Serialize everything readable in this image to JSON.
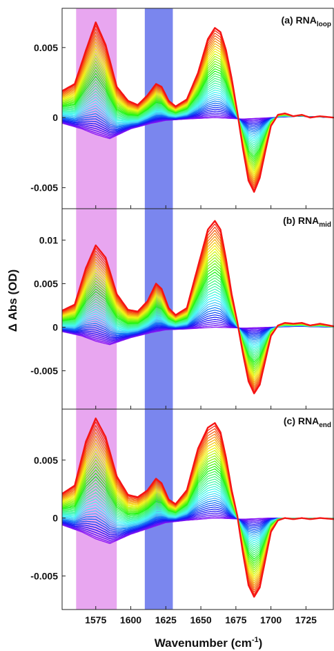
{
  "figure": {
    "ylabel": "Δ Abs (OD)",
    "xlabel_main": "Wavenumber (cm",
    "xlabel_sup": "-1",
    "xlabel_close": ")",
    "x_ticks": [
      "1575",
      "1600",
      "1625",
      "1650",
      "1675",
      "1700",
      "1725"
    ],
    "x_tick_values": [
      1575,
      1600,
      1625,
      1650,
      1675,
      1700,
      1725
    ],
    "xlim": [
      1551,
      1745
    ],
    "highlight_bands": [
      {
        "from": 1561,
        "to": 1590,
        "color": "#e8a6f0"
      },
      {
        "from": 1610,
        "to": 1630,
        "color": "#7a86ee"
      }
    ],
    "series_colors_order": "violet (earliest) to red (latest)"
  },
  "chart_data": [
    {
      "type": "line",
      "title_main": "(a) RNA",
      "title_sub": "loop",
      "ylim": [
        -0.0065,
        0.0078
      ],
      "y_ticks": [
        "0.005",
        "0",
        "-0.005"
      ],
      "y_tick_values": [
        0.005,
        0,
        -0.005
      ],
      "grid": false,
      "n_series": 40,
      "final_spectrum": {
        "x": [
          1551,
          1560,
          1568,
          1575,
          1582,
          1590,
          1598,
          1605,
          1612,
          1618,
          1622,
          1627,
          1632,
          1640,
          1648,
          1655,
          1660,
          1664,
          1668,
          1672,
          1676,
          1680,
          1684,
          1688,
          1692,
          1696,
          1700,
          1705,
          1710,
          1716,
          1722,
          1728,
          1735,
          1745
        ],
        "y": [
          0.0019,
          0.0024,
          0.0048,
          0.0068,
          0.0052,
          0.0022,
          0.0012,
          0.0009,
          0.0016,
          0.0024,
          0.0022,
          0.0012,
          0.0008,
          0.0013,
          0.0032,
          0.0056,
          0.0064,
          0.0061,
          0.0048,
          0.0028,
          0.0004,
          -0.0022,
          -0.0045,
          -0.0053,
          -0.0043,
          -0.0024,
          -0.0006,
          0.0002,
          0.0003,
          0.0001,
          0.0002,
          0.0,
          0.0001,
          0.0
        ]
      },
      "initial_spectrum": {
        "x": [
          1551,
          1565,
          1575,
          1585,
          1600,
          1615,
          1625,
          1640,
          1660,
          1680,
          1700,
          1720,
          1745
        ],
        "y": [
          -0.0004,
          -0.0008,
          -0.0012,
          -0.0015,
          -0.0008,
          -0.0004,
          -0.0002,
          -0.0001,
          0.0,
          -0.0001,
          0.0,
          0.0001,
          0.0
        ]
      }
    },
    {
      "type": "line",
      "title_main": "(b) RNA",
      "title_sub": "mid",
      "ylim": [
        -0.0094,
        0.0136
      ],
      "y_ticks": [
        "0.01",
        "0.005",
        "0",
        "-0.005"
      ],
      "y_tick_values": [
        0.01,
        0.005,
        0,
        -0.005
      ],
      "grid": false,
      "n_series": 40,
      "final_spectrum": {
        "x": [
          1551,
          1560,
          1568,
          1575,
          1582,
          1590,
          1598,
          1605,
          1612,
          1618,
          1622,
          1627,
          1632,
          1640,
          1648,
          1655,
          1660,
          1664,
          1668,
          1672,
          1676,
          1680,
          1684,
          1688,
          1692,
          1696,
          1700,
          1705,
          1710,
          1716,
          1722,
          1728,
          1735,
          1745
        ],
        "y": [
          0.0019,
          0.0026,
          0.0068,
          0.0094,
          0.008,
          0.0038,
          0.002,
          0.0018,
          0.003,
          0.005,
          0.0044,
          0.0022,
          0.0014,
          0.0022,
          0.007,
          0.0112,
          0.0122,
          0.0112,
          0.0078,
          0.0038,
          0.0006,
          -0.003,
          -0.0062,
          -0.0076,
          -0.0066,
          -0.0038,
          -0.001,
          0.0002,
          0.0005,
          0.0004,
          0.0005,
          0.0002,
          0.0004,
          0.0001
        ]
      },
      "initial_spectrum": {
        "x": [
          1551,
          1565,
          1575,
          1585,
          1600,
          1615,
          1625,
          1640,
          1660,
          1680,
          1700,
          1720,
          1745
        ],
        "y": [
          -0.0005,
          -0.001,
          -0.0016,
          -0.002,
          -0.0012,
          -0.0006,
          -0.0003,
          -0.0002,
          0.0,
          -0.0001,
          0.0,
          0.0001,
          0.0
        ]
      }
    },
    {
      "type": "line",
      "title_main": "(c) RNA",
      "title_sub": "end",
      "ylim": [
        -0.0079,
        0.0094
      ],
      "y_ticks": [
        "0.005",
        "0",
        "-0.005"
      ],
      "y_tick_values": [
        0.005,
        0,
        -0.005
      ],
      "grid": false,
      "n_series": 40,
      "final_spectrum": {
        "x": [
          1551,
          1560,
          1568,
          1575,
          1582,
          1590,
          1598,
          1605,
          1612,
          1618,
          1622,
          1627,
          1632,
          1640,
          1648,
          1655,
          1660,
          1664,
          1668,
          1672,
          1676,
          1680,
          1684,
          1688,
          1692,
          1696,
          1700,
          1705,
          1710,
          1716,
          1722,
          1728,
          1735,
          1745
        ],
        "y": [
          0.0021,
          0.0028,
          0.0066,
          0.0086,
          0.007,
          0.0036,
          0.002,
          0.0018,
          0.0024,
          0.0034,
          0.003,
          0.0016,
          0.0012,
          0.0024,
          0.006,
          0.0078,
          0.0082,
          0.0074,
          0.0052,
          0.0024,
          0.0002,
          -0.003,
          -0.0058,
          -0.0068,
          -0.006,
          -0.0036,
          -0.0012,
          -0.0002,
          0.0,
          -0.0001,
          0.0,
          -0.0001,
          0.0,
          -0.0001
        ]
      },
      "initial_spectrum": {
        "x": [
          1551,
          1565,
          1575,
          1585,
          1600,
          1615,
          1625,
          1640,
          1660,
          1680,
          1700,
          1720,
          1745
        ],
        "y": [
          -0.0006,
          -0.0012,
          -0.0018,
          -0.0022,
          -0.0014,
          -0.0008,
          -0.0004,
          -0.0002,
          0.0,
          -0.0001,
          0.0,
          0.0,
          0.0
        ]
      }
    }
  ]
}
